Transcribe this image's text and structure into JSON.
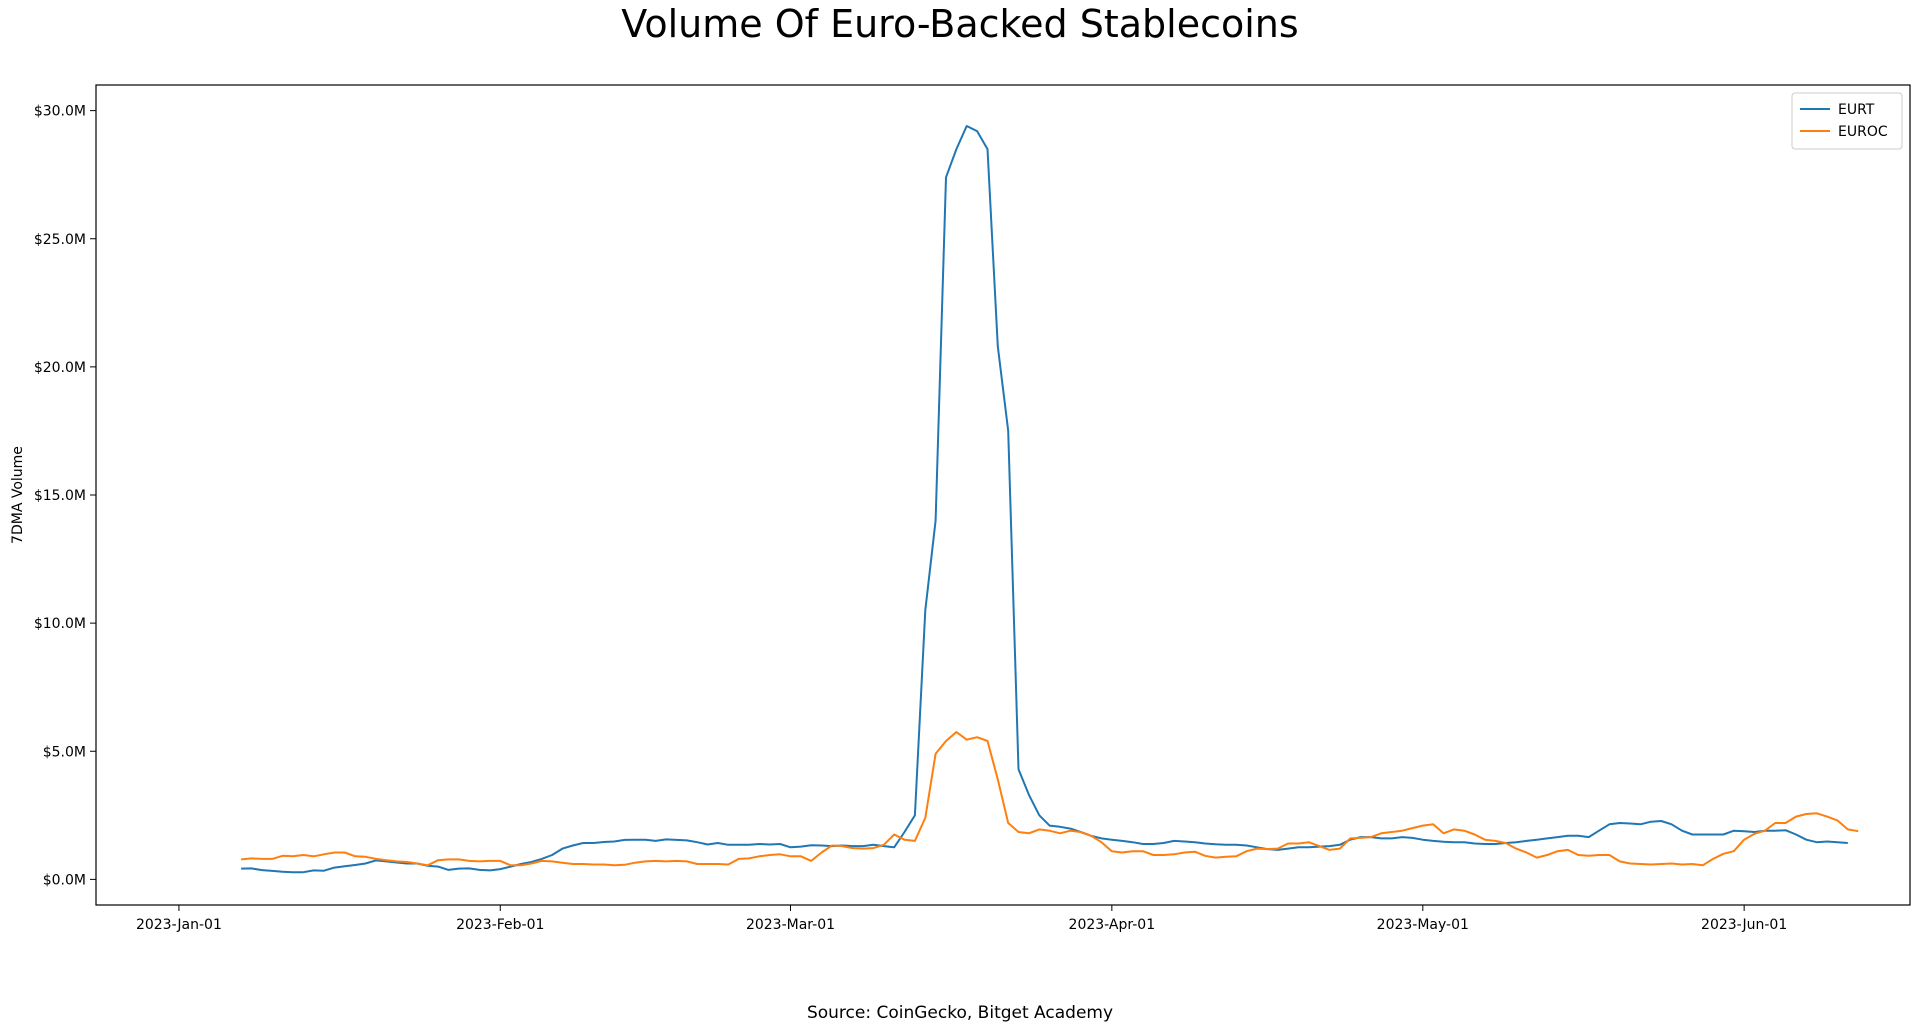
{
  "chart_data": {
    "type": "line",
    "title": "Volume Of Euro-Backed Stablecoins",
    "source": "Source: CoinGecko, Bitget Academy",
    "xlabel": "",
    "ylabel": "7DMA Volume",
    "x_start_date": "2023-01-07",
    "x_step": "1 day",
    "x_range": [
      "2022-12-24",
      "2023-06-17"
    ],
    "ylim": [
      -1000000,
      31000000
    ],
    "x_ticks": [
      "2023-Jan-01",
      "2023-Feb-01",
      "2023-Mar-01",
      "2023-Apr-01",
      "2023-May-01",
      "2023-Jun-01"
    ],
    "y_ticks": [
      "$0.0M",
      "$5.0M",
      "$10.0M",
      "$15.0M",
      "$20.0M",
      "$25.0M",
      "$30.0M"
    ],
    "grid": false,
    "legend_position": "top-right",
    "series": [
      {
        "name": "EURT",
        "color": "#1f77b4",
        "values": [
          0.42,
          0.43,
          0.36,
          0.33,
          0.3,
          0.28,
          0.28,
          0.35,
          0.34,
          0.46,
          0.51,
          0.56,
          0.62,
          0.74,
          0.7,
          0.66,
          0.62,
          0.62,
          0.53,
          0.5,
          0.37,
          0.42,
          0.43,
          0.37,
          0.35,
          0.4,
          0.5,
          0.6,
          0.68,
          0.8,
          0.95,
          1.2,
          1.32,
          1.42,
          1.42,
          1.46,
          1.48,
          1.54,
          1.55,
          1.55,
          1.5,
          1.56,
          1.54,
          1.52,
          1.45,
          1.36,
          1.42,
          1.35,
          1.35,
          1.35,
          1.38,
          1.36,
          1.38,
          1.25,
          1.28,
          1.33,
          1.32,
          1.3,
          1.32,
          1.3,
          1.3,
          1.35,
          1.3,
          1.25,
          1.85,
          2.5,
          10.5,
          14.0,
          27.4,
          28.5,
          29.4,
          29.2,
          28.5,
          20.8,
          17.5,
          4.3,
          3.3,
          2.5,
          2.1,
          2.05,
          1.98,
          1.85,
          1.7,
          1.6,
          1.55,
          1.5,
          1.45,
          1.38,
          1.38,
          1.42,
          1.5,
          1.48,
          1.45,
          1.4,
          1.37,
          1.35,
          1.35,
          1.32,
          1.25,
          1.18,
          1.15,
          1.2,
          1.25,
          1.25,
          1.28,
          1.3,
          1.35,
          1.55,
          1.65,
          1.65,
          1.6,
          1.6,
          1.65,
          1.62,
          1.55,
          1.5,
          1.47,
          1.45,
          1.45,
          1.4,
          1.38,
          1.38,
          1.42,
          1.45,
          1.5,
          1.55,
          1.6,
          1.65,
          1.7,
          1.7,
          1.65,
          1.9,
          2.15,
          2.2,
          2.18,
          2.15,
          2.25,
          2.28,
          2.15,
          1.9,
          1.75,
          1.75,
          1.75,
          1.75,
          1.9,
          1.88,
          1.85,
          1.9,
          1.9,
          1.92,
          1.75,
          1.55,
          1.45,
          1.48,
          1.45,
          1.42
        ]
      },
      {
        "name": "EUROC",
        "color": "#ff7f0e",
        "values": [
          0.78,
          0.82,
          0.8,
          0.8,
          0.92,
          0.9,
          0.95,
          0.9,
          0.98,
          1.05,
          1.05,
          0.9,
          0.88,
          0.8,
          0.75,
          0.7,
          0.68,
          0.62,
          0.55,
          0.75,
          0.78,
          0.78,
          0.72,
          0.7,
          0.72,
          0.72,
          0.55,
          0.55,
          0.62,
          0.72,
          0.7,
          0.65,
          0.6,
          0.6,
          0.58,
          0.58,
          0.55,
          0.57,
          0.65,
          0.7,
          0.72,
          0.7,
          0.72,
          0.7,
          0.6,
          0.6,
          0.6,
          0.58,
          0.8,
          0.82,
          0.9,
          0.95,
          0.98,
          0.9,
          0.9,
          0.72,
          1.05,
          1.32,
          1.3,
          1.22,
          1.2,
          1.22,
          1.35,
          1.75,
          1.55,
          1.5,
          2.4,
          4.9,
          5.4,
          5.75,
          5.45,
          5.55,
          5.4,
          3.9,
          2.2,
          1.85,
          1.8,
          1.95,
          1.9,
          1.8,
          1.9,
          1.85,
          1.7,
          1.45,
          1.1,
          1.05,
          1.1,
          1.1,
          0.95,
          0.95,
          0.98,
          1.05,
          1.08,
          0.92,
          0.85,
          0.88,
          0.9,
          1.1,
          1.2,
          1.18,
          1.2,
          1.4,
          1.4,
          1.45,
          1.3,
          1.15,
          1.2,
          1.6,
          1.62,
          1.65,
          1.8,
          1.85,
          1.9,
          2.0,
          2.1,
          2.15,
          1.8,
          1.95,
          1.9,
          1.75,
          1.55,
          1.5,
          1.42,
          1.2,
          1.05,
          0.85,
          0.95,
          1.1,
          1.15,
          0.95,
          0.92,
          0.95,
          0.95,
          0.7,
          0.62,
          0.6,
          0.58,
          0.6,
          0.62,
          0.58,
          0.6,
          0.55,
          0.8,
          1.0,
          1.1,
          1.55,
          1.78,
          1.9,
          2.2,
          2.2,
          2.45,
          2.55,
          2.58,
          2.45,
          2.3,
          1.95,
          1.88
        ]
      }
    ]
  }
}
